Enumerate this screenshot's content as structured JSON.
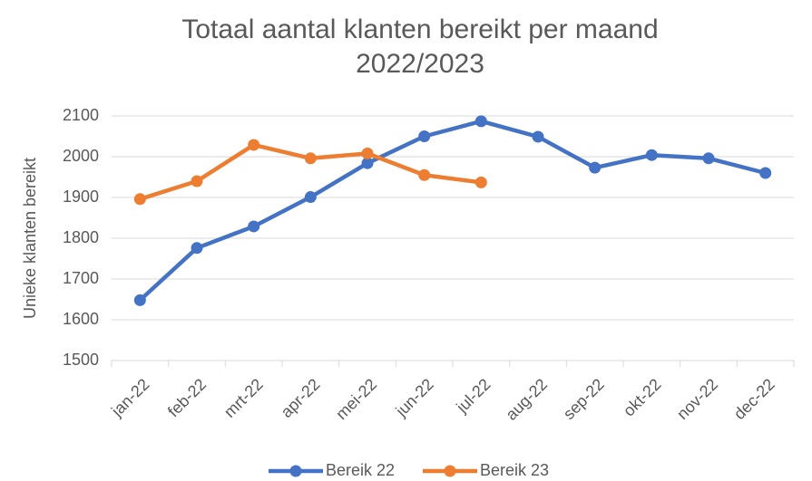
{
  "chart_data": {
    "type": "line",
    "title": "Totaal aantal klanten bereikt per maand 2022/2023",
    "y_label": "Unieke klanten bereikt",
    "categories": [
      "jan-22",
      "feb-22",
      "mrt-22",
      "apr-22",
      "mei-22",
      "jun-22",
      "jul-22",
      "aug-22",
      "sep-22",
      "okt-22",
      "nov-22",
      "dec-22"
    ],
    "series": [
      {
        "name": "Bereik 22",
        "color": "#4472c4",
        "values": [
          1648,
          1776,
          1829,
          1901,
          1984,
          2050,
          2087,
          2049,
          1973,
          2004,
          1996,
          1960
        ]
      },
      {
        "name": "Bereik 23",
        "color": "#ed7d31",
        "values": [
          1896,
          1940,
          2029,
          1996,
          2008,
          1955,
          1937,
          null,
          null,
          null,
          null,
          null
        ]
      }
    ],
    "ylim": [
      1500,
      2100
    ],
    "yticks": [
      1500,
      1600,
      1700,
      1800,
      1900,
      2000,
      2100
    ],
    "grid": true,
    "legend": "bottom"
  }
}
